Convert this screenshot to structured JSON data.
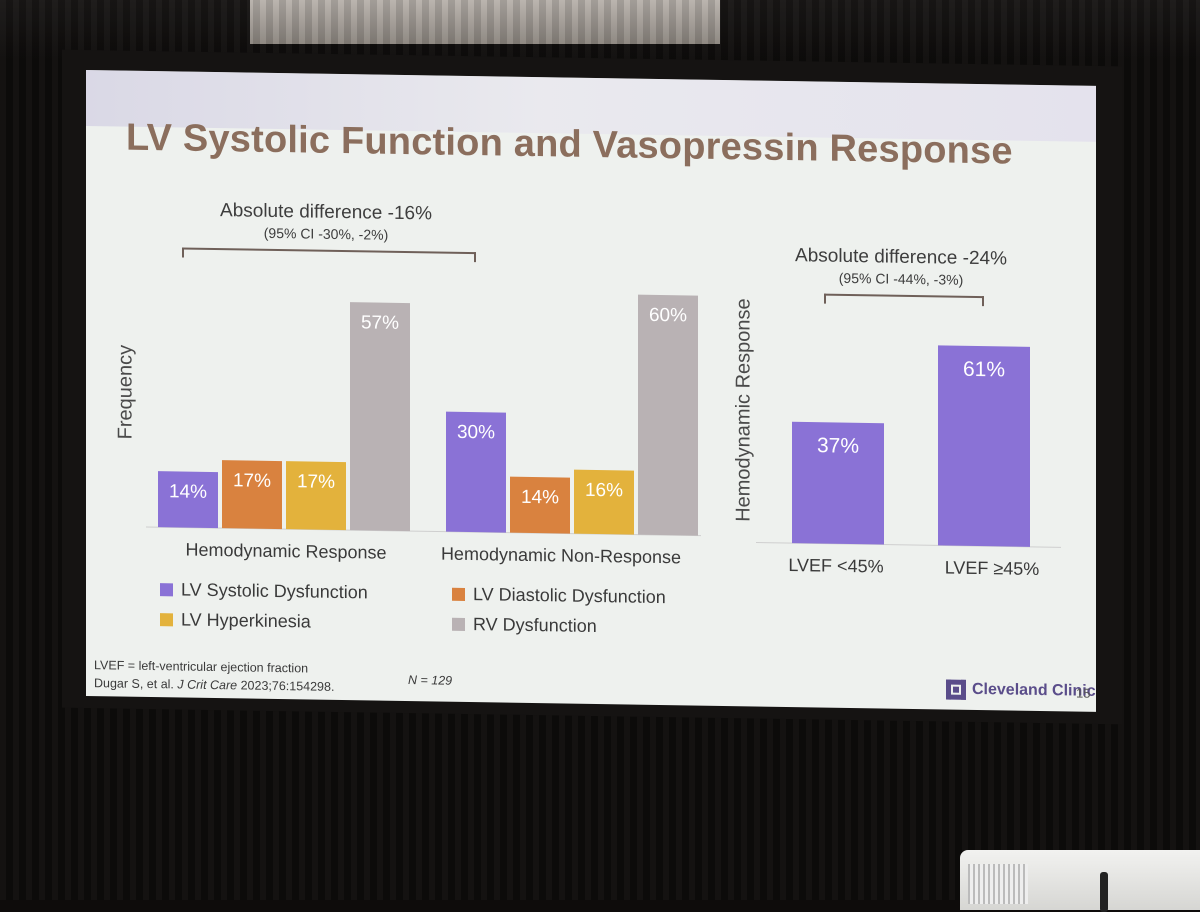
{
  "slide": {
    "title": "LV Systolic Function and Vasopressin Response",
    "footnote_line1": "LVEF = left-ventricular ejection fraction",
    "footnote_line2_prefix": "Dugar S, et al. ",
    "footnote_line2_journal": "J Crit Care",
    "footnote_line2_suffix": " 2023;76:154298.",
    "n_label": "N = 129",
    "logo_text": "Cleveland Clinic",
    "page_number": "15",
    "colors": {
      "accent_title": "#8b6e5d",
      "brand": "#5a4d8a"
    }
  },
  "chart_data": [
    {
      "type": "bar",
      "categories": [
        "Hemodynamic Response",
        "Hemodynamic Non-Response"
      ],
      "series": [
        {
          "name": "LV Systolic Dysfunction",
          "color": "#8a72d6",
          "values": [
            14,
            30
          ]
        },
        {
          "name": "LV Diastolic Dysfunction",
          "color": "#d9823f",
          "values": [
            17,
            14
          ]
        },
        {
          "name": "LV Hyperkinesia",
          "color": "#e3b23c",
          "values": [
            17,
            16
          ]
        },
        {
          "name": "RV Dysfunction",
          "color": "#b9b2b4",
          "values": [
            57,
            60
          ]
        }
      ],
      "data_labels": [
        [
          "14%",
          "30%"
        ],
        [
          "17%",
          "14%"
        ],
        [
          "17%",
          "16%"
        ],
        [
          "57%",
          "60%"
        ]
      ],
      "ylabel": "Frequency",
      "ylim": [
        0,
        60
      ],
      "grid": false,
      "legend": "bottom",
      "annotation": {
        "line1": "Absolute difference -16%",
        "line2": "(95% CI -30%, -2%)"
      }
    },
    {
      "type": "bar",
      "categories": [
        "LVEF <45%",
        "LVEF ≥45%"
      ],
      "values": [
        37,
        61
      ],
      "color": "#8a72d6",
      "data_labels": [
        "37%",
        "61%"
      ],
      "ylabel": "Hemodynamic Response",
      "ylim": [
        0,
        61
      ],
      "grid": false,
      "annotation": {
        "line1": "Absolute difference -24%",
        "line2": "(95% CI -44%, -3%)"
      }
    }
  ]
}
